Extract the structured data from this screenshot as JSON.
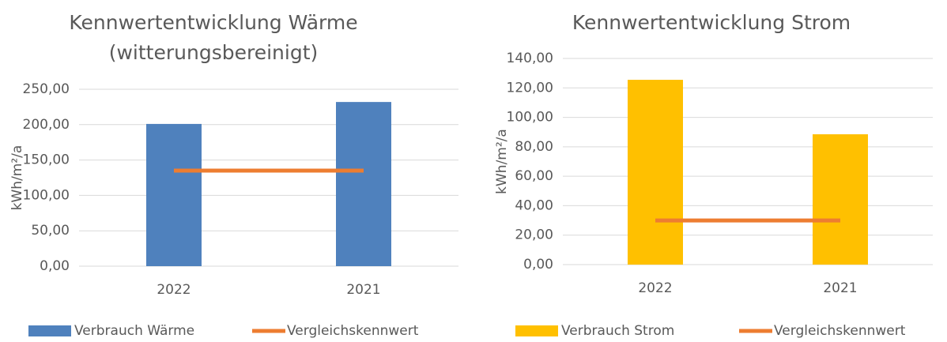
{
  "chart_data": [
    {
      "type": "bar",
      "title": [
        "Kennwertentwicklung Wärme",
        "(witterungsbereinigt)"
      ],
      "y_label": "kWh/m²/a",
      "categories": [
        "2022",
        "2021"
      ],
      "series": [
        {
          "name": "Verbrauch Wärme",
          "type": "bar",
          "color": "#4f81bd",
          "values": [
            201,
            232
          ]
        },
        {
          "name": "Vergleichskennwert",
          "type": "line",
          "color": "#ed7d31",
          "values": [
            135,
            135
          ]
        }
      ],
      "ylim": [
        0,
        250
      ],
      "yticks": [
        {
          "value": 0,
          "label": "0,00"
        },
        {
          "value": 50,
          "label": "50,00"
        },
        {
          "value": 100,
          "label": "100,00"
        },
        {
          "value": 150,
          "label": "150,00"
        },
        {
          "value": 200,
          "label": "200,00"
        },
        {
          "value": 250,
          "label": "250,00"
        }
      ],
      "grid": true,
      "legend": "bottom"
    },
    {
      "type": "bar",
      "title": [
        "Kennwertentwicklung Strom"
      ],
      "y_label": "kWh/m²/a",
      "categories": [
        "2022",
        "2021"
      ],
      "series": [
        {
          "name": "Verbrauch Strom",
          "type": "bar",
          "color": "#ffc000",
          "values": [
            125.5,
            88.5
          ]
        },
        {
          "name": "Vergleichskennwert",
          "type": "line",
          "color": "#ed7d31",
          "values": [
            30,
            30
          ]
        }
      ],
      "ylim": [
        0,
        140
      ],
      "yticks": [
        {
          "value": 0,
          "label": "0,00"
        },
        {
          "value": 20,
          "label": "20,00"
        },
        {
          "value": 40,
          "label": "40,00"
        },
        {
          "value": 60,
          "label": "60,00"
        },
        {
          "value": 80,
          "label": "80,00"
        },
        {
          "value": 100,
          "label": "100,00"
        },
        {
          "value": 120,
          "label": "120,00"
        },
        {
          "value": 140,
          "label": "140,00"
        }
      ],
      "grid": true,
      "legend": "bottom"
    }
  ]
}
